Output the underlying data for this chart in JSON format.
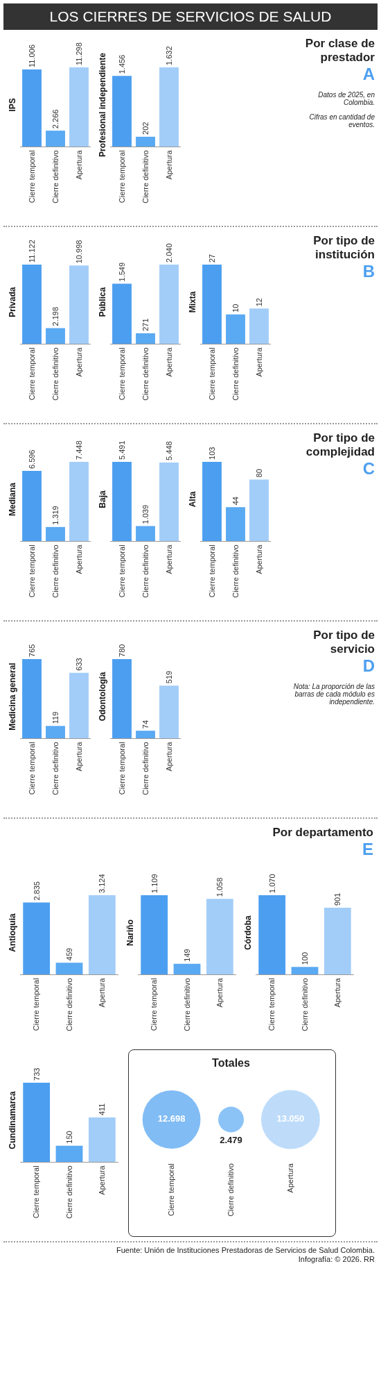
{
  "chart_data": [
    {
      "type": "other",
      "title": "LOS CIERRES DE SERVICIOS DE SALUD"
    },
    {
      "type": "other",
      "title": "Por clase de prestador",
      "subtitle": "A",
      "annotations": [
        "Datos de 2025, en Colombia.",
        "Cifras en cantidad de eventos."
      ]
    },
    {
      "type": "bar",
      "ylabel": "IPS",
      "categories": [
        "Cierre temporal",
        "Cierre definitivo",
        "Apertura"
      ],
      "values": [
        11006,
        2266,
        11298
      ],
      "value_labels": [
        "11.006",
        "2.266",
        "11.298"
      ],
      "colors": [
        "#4c9ff0",
        "#5aa9f3",
        "#a2cdf8"
      ]
    },
    {
      "type": "bar",
      "ylabel": "Profesional independiente",
      "categories": [
        "Cierre temporal",
        "Cierre definitivo",
        "Apertura"
      ],
      "values": [
        1456,
        202,
        1632
      ],
      "value_labels": [
        "1.456",
        "202",
        "1.632"
      ],
      "colors": [
        "#4c9ff0",
        "#5aa9f3",
        "#a2cdf8"
      ]
    },
    {
      "type": "other",
      "title": "Por tipo de institución",
      "subtitle": "B"
    },
    {
      "type": "bar",
      "ylabel": "Privada",
      "categories": [
        "Cierre temporal",
        "Cierre definitivo",
        "Apertura"
      ],
      "values": [
        11122,
        2198,
        10998
      ],
      "value_labels": [
        "11.122",
        "2.198",
        "10.998"
      ],
      "colors": [
        "#4c9ff0",
        "#5aa9f3",
        "#a2cdf8"
      ]
    },
    {
      "type": "bar",
      "ylabel": "Pública",
      "categories": [
        "Cierre temporal",
        "Cierre definitivo",
        "Apertura"
      ],
      "values": [
        1549,
        271,
        2040
      ],
      "value_labels": [
        "1.549",
        "271",
        "2.040"
      ],
      "colors": [
        "#4c9ff0",
        "#5aa9f3",
        "#a2cdf8"
      ]
    },
    {
      "type": "bar",
      "ylabel": "Mixta",
      "categories": [
        "Cierre temporal",
        "Cierre definitivo",
        "Apertura"
      ],
      "values": [
        27,
        10,
        12
      ],
      "value_labels": [
        "27",
        "10",
        "12"
      ],
      "colors": [
        "#4c9ff0",
        "#5aa9f3",
        "#a2cdf8"
      ]
    },
    {
      "type": "other",
      "title": "Por tipo de complejidad",
      "subtitle": "C"
    },
    {
      "type": "bar",
      "ylabel": "Mediana",
      "categories": [
        "Cierre temporal",
        "Cierre definitivo",
        "Apertura"
      ],
      "values": [
        6596,
        1319,
        7448
      ],
      "value_labels": [
        "6.596",
        "1.319",
        "7.448"
      ],
      "colors": [
        "#4c9ff0",
        "#5aa9f3",
        "#a2cdf8"
      ]
    },
    {
      "type": "bar",
      "ylabel": "Baja",
      "categories": [
        "Cierre temporal",
        "Cierre definitivo",
        "Apertura"
      ],
      "values": [
        5491,
        1039,
        5448
      ],
      "value_labels": [
        "5.491",
        "1.039",
        "5.448"
      ],
      "colors": [
        "#4c9ff0",
        "#5aa9f3",
        "#a2cdf8"
      ]
    },
    {
      "type": "bar",
      "ylabel": "Alta",
      "categories": [
        "Cierre temporal",
        "Cierre definitivo",
        "Apertura"
      ],
      "values": [
        103,
        44,
        80
      ],
      "value_labels": [
        "103",
        "44",
        "80"
      ],
      "colors": [
        "#4c9ff0",
        "#5aa9f3",
        "#a2cdf8"
      ]
    },
    {
      "type": "other",
      "title": "Por tipo de servicio",
      "subtitle": "D",
      "annotations": [
        "Nota: La proporción de las barras de cada módulo es independiente."
      ]
    },
    {
      "type": "bar",
      "ylabel": "Medicina general",
      "categories": [
        "Cierre temporal",
        "Cierre definitivo",
        "Apertura"
      ],
      "values": [
        765,
        119,
        633
      ],
      "value_labels": [
        "765",
        "119",
        "633"
      ],
      "colors": [
        "#4c9ff0",
        "#5aa9f3",
        "#a2cdf8"
      ]
    },
    {
      "type": "bar",
      "ylabel": "Odontología",
      "categories": [
        "Cierre temporal",
        "Cierre definitivo",
        "Apertura"
      ],
      "values": [
        780,
        74,
        519
      ],
      "value_labels": [
        "780",
        "74",
        "519"
      ],
      "colors": [
        "#4c9ff0",
        "#5aa9f3",
        "#a2cdf8"
      ]
    },
    {
      "type": "other",
      "title": "Por departamento",
      "subtitle": "E"
    },
    {
      "type": "bar",
      "ylabel": "Antioquia",
      "categories": [
        "Cierre temporal",
        "Cierre definitivo",
        "Apertura"
      ],
      "values": [
        2835,
        459,
        3124
      ],
      "value_labels": [
        "2.835",
        "459",
        "3.124"
      ],
      "colors": [
        "#4c9ff0",
        "#5aa9f3",
        "#a2cdf8"
      ]
    },
    {
      "type": "bar",
      "ylabel": "Nariño",
      "categories": [
        "Cierre temporal",
        "Cierre definitivo",
        "Apertura"
      ],
      "values": [
        1109,
        149,
        1058
      ],
      "value_labels": [
        "1.109",
        "149",
        "1.058"
      ],
      "colors": [
        "#4c9ff0",
        "#5aa9f3",
        "#a2cdf8"
      ]
    },
    {
      "type": "bar",
      "ylabel": "Córdoba",
      "categories": [
        "Cierre temporal",
        "Cierre definitivo",
        "Apertura"
      ],
      "values": [
        1070,
        100,
        901
      ],
      "value_labels": [
        "1.070",
        "100",
        "901"
      ],
      "colors": [
        "#4c9ff0",
        "#5aa9f3",
        "#a2cdf8"
      ]
    },
    {
      "type": "bar",
      "ylabel": "Cundinamarca",
      "categories": [
        "Cierre temporal",
        "Cierre definitivo",
        "Apertura"
      ],
      "values": [
        733,
        150,
        411
      ],
      "value_labels": [
        "733",
        "150",
        "411"
      ],
      "colors": [
        "#4c9ff0",
        "#5aa9f3",
        "#a2cdf8"
      ]
    },
    {
      "type": "other",
      "title": "Totales",
      "categories": [
        "Cierre temporal",
        "Cierre definitivo",
        "Apertura"
      ],
      "values": [
        12698,
        2479,
        13050
      ],
      "value_labels": [
        "12.698",
        "2.479",
        "13.050"
      ],
      "colors": [
        "#4c9ff0",
        "#5aa9f3",
        "#a2cdf8"
      ]
    },
    {
      "type": "other",
      "annotations": [
        "Fuente: Unión de Instituciones Prestadoras de Servicios de Salud Colombia.",
        "Infografía: © 2026. RR"
      ]
    }
  ]
}
